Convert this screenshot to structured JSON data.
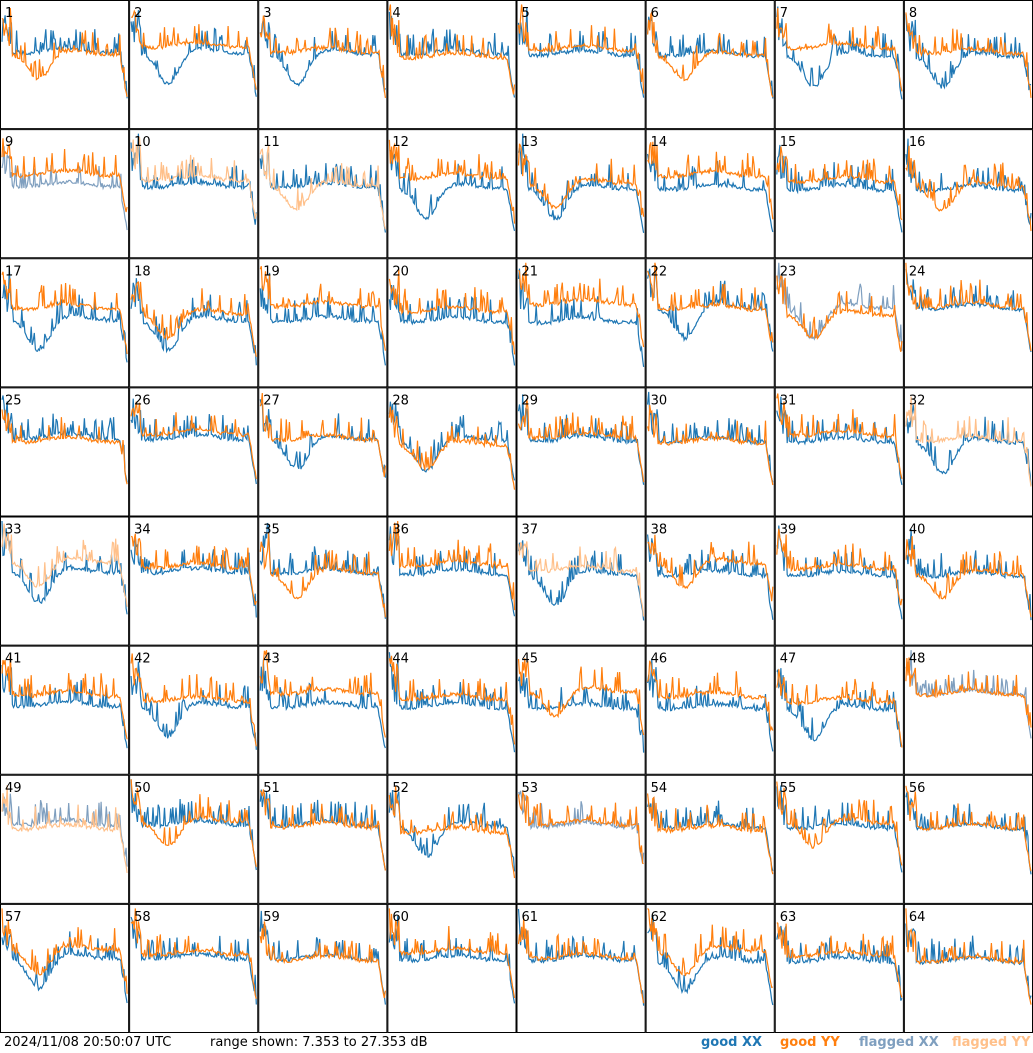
{
  "chart_data": {
    "type": "line",
    "panel_labels": [
      "1",
      "2",
      "3",
      "4",
      "5",
      "6",
      "7",
      "8",
      "9",
      "10",
      "11",
      "12",
      "13",
      "14",
      "15",
      "16",
      "17",
      "18",
      "19",
      "20",
      "21",
      "22",
      "23",
      "24",
      "25",
      "26",
      "27",
      "28",
      "29",
      "30",
      "31",
      "32",
      "33",
      "34",
      "35",
      "36",
      "37",
      "38",
      "39",
      "40",
      "41",
      "42",
      "43",
      "44",
      "45",
      "46",
      "47",
      "48",
      "49",
      "50",
      "51",
      "52",
      "53",
      "54",
      "55",
      "56",
      "57",
      "58",
      "59",
      "60",
      "61",
      "62",
      "63",
      "64"
    ],
    "ylim": [
      7.353,
      27.353
    ],
    "legend": [
      {
        "name": "good XX",
        "color": "#1f77b4"
      },
      {
        "name": "good YY",
        "color": "#ff7f0e"
      },
      {
        "name": "flagged XX",
        "color": "#7f9fbf"
      },
      {
        "name": "flagged YY",
        "color": "#ffc08a"
      }
    ],
    "flags": {
      "flagged_xx": [
        "9",
        "23",
        "48",
        "49",
        "53"
      ],
      "flagged_yy": [
        "10",
        "11",
        "32",
        "33",
        "37",
        "49"
      ]
    }
  },
  "footer": {
    "timestamp": "2024/11/08 20:50:07 UTC",
    "range": "range shown: 7.353 to 27.353 dB"
  }
}
